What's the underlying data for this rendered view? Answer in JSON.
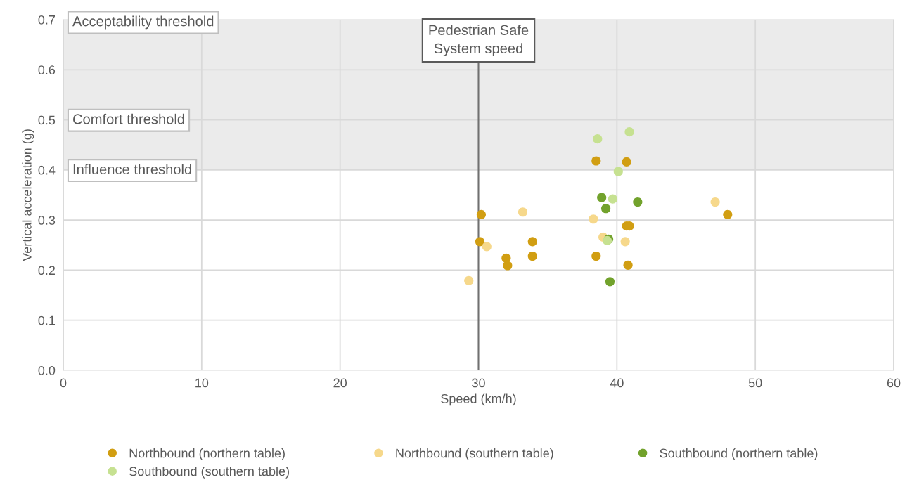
{
  "chart_data": {
    "type": "scatter",
    "xlabel": "Speed (km/h)",
    "ylabel": "Vertical acceleration (g)",
    "xlim": [
      0,
      60
    ],
    "xticks": [
      0,
      10,
      20,
      30,
      40,
      50,
      60
    ],
    "ylim": [
      0,
      0.7
    ],
    "yticks": [
      {
        "value": 0,
        "label": "0.0"
      },
      0.1,
      0.2,
      0.3,
      0.4,
      0.5,
      0.6,
      0.7
    ],
    "grid": true,
    "legend": "bottom",
    "marker": "circle",
    "series": [
      {
        "name": "Northbound (northern table)",
        "color": "#d19e12",
        "x": [
          30.2,
          30.1,
          32.0,
          32.1,
          33.9,
          33.9,
          38.5,
          40.7,
          40.9,
          40.8,
          48.0,
          38.5,
          40.7
        ],
        "values": [
          0.311,
          0.257,
          0.224,
          0.209,
          0.257,
          0.228,
          0.228,
          0.288,
          0.288,
          0.21,
          0.311,
          0.418,
          0.416
        ]
      },
      {
        "name": "Northbound (southern table)",
        "color": "#f6d88b",
        "x": [
          29.3,
          30.6,
          33.2,
          38.3,
          39.0,
          40.6,
          47.1
        ],
        "values": [
          0.179,
          0.247,
          0.316,
          0.302,
          0.266,
          0.257,
          0.336
        ]
      },
      {
        "name": "Southbound (northern table)",
        "color": "#72a22c",
        "x": [
          38.9,
          39.2,
          41.5,
          39.4,
          39.5
        ],
        "values": [
          0.345,
          0.323,
          0.336,
          0.262,
          0.177
        ]
      },
      {
        "name": "Southbound (southern table)",
        "color": "#c6e191",
        "x": [
          38.6,
          40.9,
          40.1,
          39.7,
          39.3
        ],
        "values": [
          0.462,
          0.476,
          0.397,
          0.342,
          0.259
        ]
      }
    ],
    "bands": [
      {
        "axis": "y",
        "from": 0.4,
        "to": 0.7,
        "color": "#ebebeb"
      }
    ],
    "annotations": [
      "Acceptability threshold",
      "Comfort threshold",
      "Influence threshold"
    ],
    "ref_lines": [
      {
        "axis": "x",
        "value": 30,
        "label": "Pedestrian Safe\nSystem speed",
        "color": "#707070"
      }
    ]
  }
}
